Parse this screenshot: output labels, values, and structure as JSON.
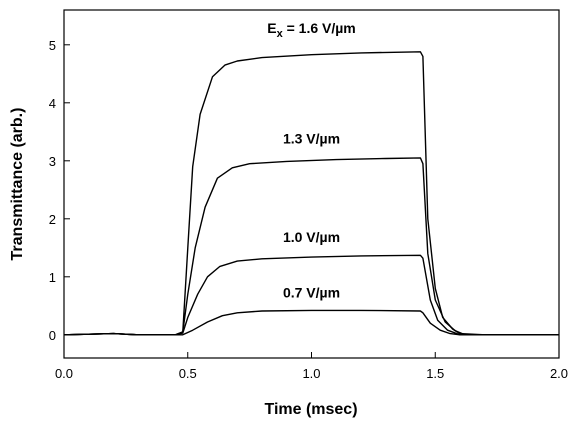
{
  "chart_data": {
    "type": "line",
    "xlabel": "Time (msec)",
    "ylabel": "Transmittance (arb.)",
    "xlim": [
      0.0,
      2.0
    ],
    "ylim": [
      -0.4,
      5.6
    ],
    "x_ticks": [
      "0.0",
      "0.5",
      "1.0",
      "1.5",
      "2.0"
    ],
    "y_ticks": [
      "0",
      "1",
      "2",
      "3",
      "4",
      "5"
    ],
    "grid": false,
    "legend": "none",
    "annotations": [
      {
        "prefix": "E",
        "subscript": "x",
        "text": " = 1.6 V/µm",
        "x": 1.0,
        "y": 5.2
      },
      {
        "prefix": "",
        "subscript": "",
        "text": "1.3 V/µm",
        "x": 1.0,
        "y": 3.3
      },
      {
        "prefix": "",
        "subscript": "",
        "text": "1.0 V/µm",
        "x": 1.0,
        "y": 1.6
      },
      {
        "prefix": "",
        "subscript": "",
        "text": "0.7 V/µm",
        "x": 1.0,
        "y": 0.64
      }
    ],
    "series": [
      {
        "values": [
          [
            0.0,
            0.0
          ],
          [
            0.2,
            0.02
          ],
          [
            0.3,
            0.0
          ],
          [
            0.45,
            0.0
          ],
          [
            0.48,
            0.05
          ],
          [
            0.5,
            1.5
          ],
          [
            0.52,
            2.9
          ],
          [
            0.55,
            3.8
          ],
          [
            0.6,
            4.45
          ],
          [
            0.65,
            4.65
          ],
          [
            0.7,
            4.72
          ],
          [
            0.8,
            4.78
          ],
          [
            1.0,
            4.83
          ],
          [
            1.2,
            4.86
          ],
          [
            1.44,
            4.88
          ],
          [
            1.45,
            4.8
          ],
          [
            1.47,
            2.0
          ],
          [
            1.5,
            0.8
          ],
          [
            1.53,
            0.3
          ],
          [
            1.57,
            0.1
          ],
          [
            1.6,
            0.02
          ],
          [
            1.7,
            0.0
          ],
          [
            2.0,
            0.0
          ]
        ]
      },
      {
        "values": [
          [
            0.0,
            0.0
          ],
          [
            0.2,
            0.02
          ],
          [
            0.3,
            0.0
          ],
          [
            0.45,
            0.0
          ],
          [
            0.48,
            0.05
          ],
          [
            0.5,
            0.7
          ],
          [
            0.53,
            1.5
          ],
          [
            0.57,
            2.2
          ],
          [
            0.62,
            2.7
          ],
          [
            0.68,
            2.88
          ],
          [
            0.75,
            2.95
          ],
          [
            0.9,
            2.99
          ],
          [
            1.1,
            3.02
          ],
          [
            1.3,
            3.04
          ],
          [
            1.44,
            3.05
          ],
          [
            1.45,
            2.95
          ],
          [
            1.47,
            1.4
          ],
          [
            1.5,
            0.6
          ],
          [
            1.54,
            0.22
          ],
          [
            1.58,
            0.07
          ],
          [
            1.62,
            0.0
          ],
          [
            2.0,
            0.0
          ]
        ]
      },
      {
        "values": [
          [
            0.0,
            0.0
          ],
          [
            0.2,
            0.02
          ],
          [
            0.3,
            0.0
          ],
          [
            0.45,
            0.0
          ],
          [
            0.48,
            0.03
          ],
          [
            0.5,
            0.3
          ],
          [
            0.54,
            0.7
          ],
          [
            0.58,
            1.0
          ],
          [
            0.63,
            1.18
          ],
          [
            0.7,
            1.27
          ],
          [
            0.8,
            1.31
          ],
          [
            1.0,
            1.34
          ],
          [
            1.2,
            1.36
          ],
          [
            1.44,
            1.37
          ],
          [
            1.45,
            1.32
          ],
          [
            1.48,
            0.6
          ],
          [
            1.51,
            0.25
          ],
          [
            1.55,
            0.08
          ],
          [
            1.6,
            0.0
          ],
          [
            2.0,
            0.0
          ]
        ]
      },
      {
        "values": [
          [
            0.0,
            0.0
          ],
          [
            0.2,
            0.02
          ],
          [
            0.3,
            0.0
          ],
          [
            0.48,
            0.0
          ],
          [
            0.52,
            0.08
          ],
          [
            0.58,
            0.22
          ],
          [
            0.64,
            0.33
          ],
          [
            0.7,
            0.38
          ],
          [
            0.8,
            0.41
          ],
          [
            1.0,
            0.42
          ],
          [
            1.2,
            0.42
          ],
          [
            1.44,
            0.41
          ],
          [
            1.45,
            0.38
          ],
          [
            1.48,
            0.2
          ],
          [
            1.52,
            0.08
          ],
          [
            1.56,
            0.02
          ],
          [
            1.6,
            0.0
          ],
          [
            2.0,
            0.0
          ]
        ]
      }
    ]
  }
}
